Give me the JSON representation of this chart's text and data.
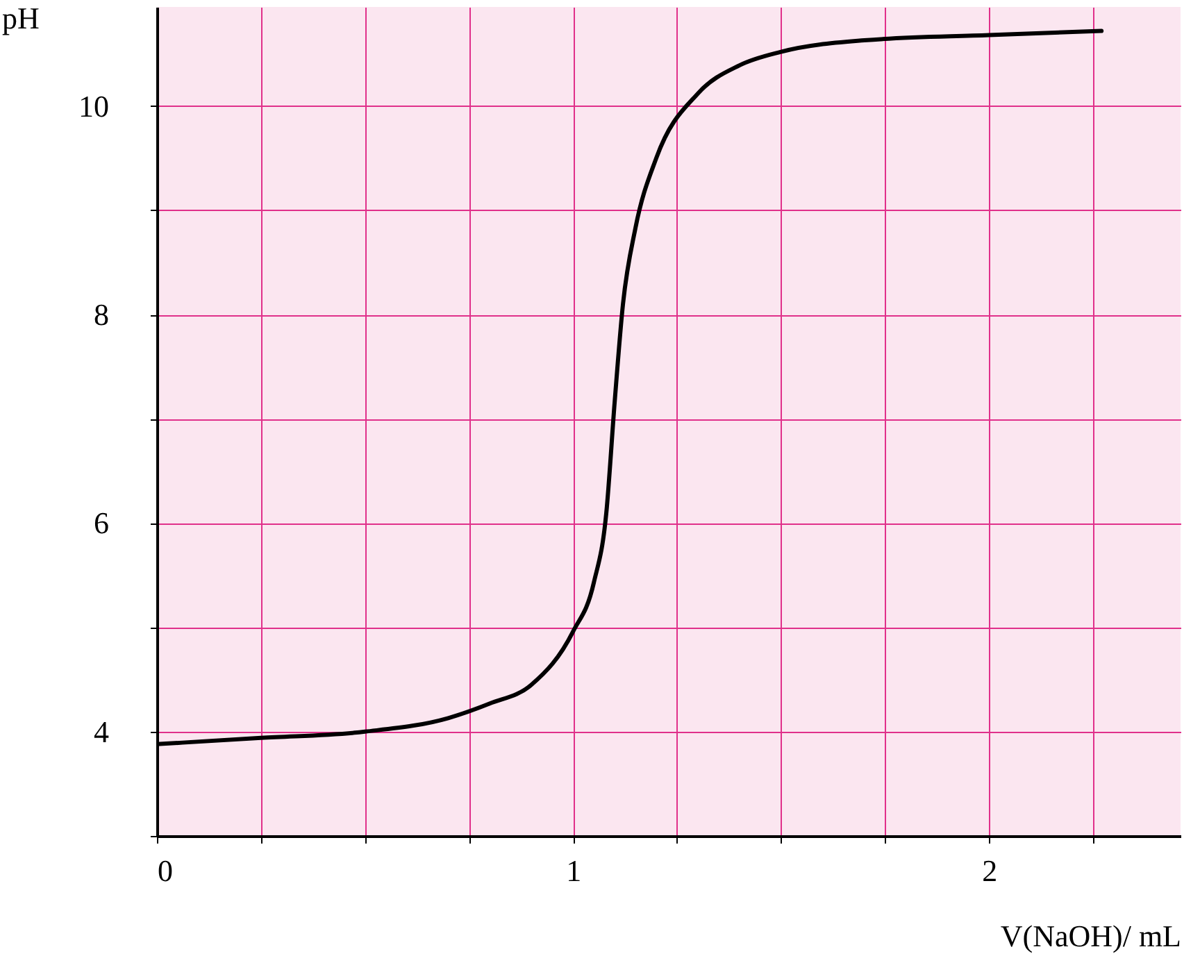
{
  "chart_data": {
    "type": "line",
    "xlabel": "V(NaOH)/ mL",
    "ylabel": "pH",
    "x": [
      0,
      0.25,
      0.5,
      0.7,
      0.8,
      0.9,
      1.0,
      1.05,
      1.08,
      1.1,
      1.12,
      1.15,
      1.2,
      1.3,
      1.4,
      1.5,
      1.7,
      2.0,
      2.27
    ],
    "series": [
      {
        "color": "#000000",
        "values": [
          3.88,
          3.94,
          4.0,
          4.13,
          4.27,
          4.45,
          4.96,
          5.43,
          6.1,
          7.16,
          8.1,
          8.83,
          9.5,
          10.12,
          10.39,
          10.52,
          10.63,
          10.68,
          10.72
        ]
      }
    ],
    "xlim": [
      0,
      2.46
    ],
    "ylim": [
      3,
      10.95
    ],
    "xticks": [
      0,
      {
        "value": 0.25,
        "label": null
      },
      {
        "value": 0.5,
        "label": null
      },
      {
        "value": 0.75,
        "label": null
      },
      1,
      {
        "value": 1.25,
        "label": null
      },
      {
        "value": 1.5,
        "label": null
      },
      {
        "value": 1.75,
        "label": null
      },
      2,
      {
        "value": 2.25,
        "label": null
      }
    ],
    "yticks": [
      {
        "value": 3,
        "label": null
      },
      4,
      {
        "value": 5,
        "label": null
      },
      6,
      {
        "value": 7,
        "label": null
      },
      8,
      {
        "value": 9,
        "label": null
      },
      10
    ],
    "grid": true,
    "marker": "none",
    "line_style": "solid"
  }
}
